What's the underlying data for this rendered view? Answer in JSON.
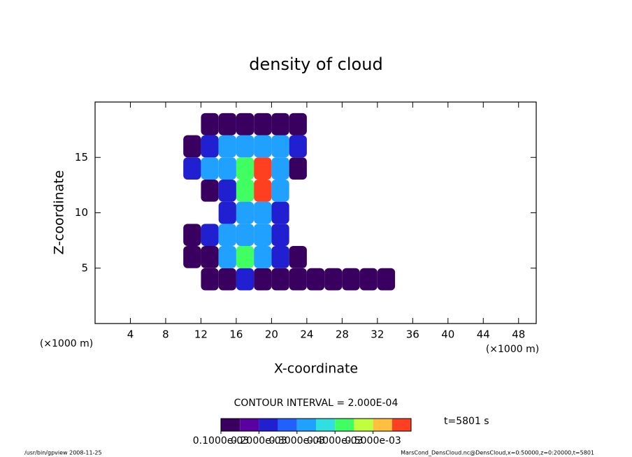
{
  "chart_data": {
    "type": "shaded-contour",
    "title": "density of cloud",
    "xlabel": "X-coordinate",
    "ylabel": "Z-coordinate",
    "x_units": "(×1000 m)",
    "xlim": [
      0,
      50
    ],
    "ylim": [
      0,
      20
    ],
    "xticks": [
      4,
      8,
      12,
      16,
      20,
      24,
      28,
      32,
      36,
      40,
      44,
      48
    ],
    "yticks": [
      5,
      10,
      15
    ],
    "x": [
      11,
      13,
      15,
      17,
      19,
      21,
      23,
      25,
      27,
      29,
      31,
      33
    ],
    "z": [
      4,
      6,
      8,
      10,
      12,
      14,
      16,
      18
    ],
    "values": [
      [
        0,
        0.0001,
        0.0001,
        0.0002,
        0.0001,
        0.0001,
        0.0001,
        0.0001,
        0.0001,
        0.0001,
        0.0001,
        0.0001
      ],
      [
        0.0001,
        0.0001,
        0.0003,
        0.0004,
        0.0003,
        0.0002,
        0.0001,
        0,
        0,
        0,
        0,
        0
      ],
      [
        0.0001,
        0.0002,
        0.0003,
        0.0003,
        0.0003,
        0.0002,
        0,
        0,
        0,
        0,
        0,
        0
      ],
      [
        0,
        0,
        0.0002,
        0.0003,
        0.0003,
        0.0002,
        0,
        0,
        0,
        0,
        0,
        0
      ],
      [
        0,
        0.0001,
        0.0002,
        0.0004,
        0.0006,
        0.0003,
        0,
        0,
        0,
        0,
        0,
        0
      ],
      [
        0.0002,
        0.0003,
        0.0003,
        0.0004,
        0.0008,
        0.0003,
        0.0001,
        0,
        0,
        0,
        0,
        0
      ],
      [
        0.0001,
        0.0002,
        0.0003,
        0.0003,
        0.0003,
        0.0003,
        0.0002,
        0,
        0,
        0,
        0,
        0
      ],
      [
        0,
        0.0001,
        0.0001,
        0.0001,
        0.0001,
        0.0001,
        0.0001,
        0,
        0,
        0,
        0,
        0
      ]
    ],
    "contour_interval": "CONTOUR INTERVAL = 2.000E-04",
    "time_label": "t=5801 s",
    "colorbar": {
      "clim": [
        0.0001,
        0.0006
      ],
      "colors": [
        "#3a0060",
        "#5a00a0",
        "#2020d0",
        "#2060ff",
        "#20a0ff",
        "#30e0e0",
        "#40ff60",
        "#c0ff40",
        "#ffc040",
        "#ff4020"
      ],
      "ticks": [
        {
          "value": 0.0001,
          "label": "0.1000e-03"
        },
        {
          "value": 0.0002,
          "label": "0.2000e-03"
        },
        {
          "value": 0.0003,
          "label": "0.3000e-03"
        },
        {
          "value": 0.0004,
          "label": "0.4000e-03"
        },
        {
          "value": 0.0005,
          "label": "0.5000e-03"
        }
      ]
    },
    "footer_left": "/usr/bin/gpview  2008-11-25",
    "footer_right": "MarsCond_DensCloud.nc@DensCloud,x=0:50000,z=0:20000,t=5801"
  }
}
